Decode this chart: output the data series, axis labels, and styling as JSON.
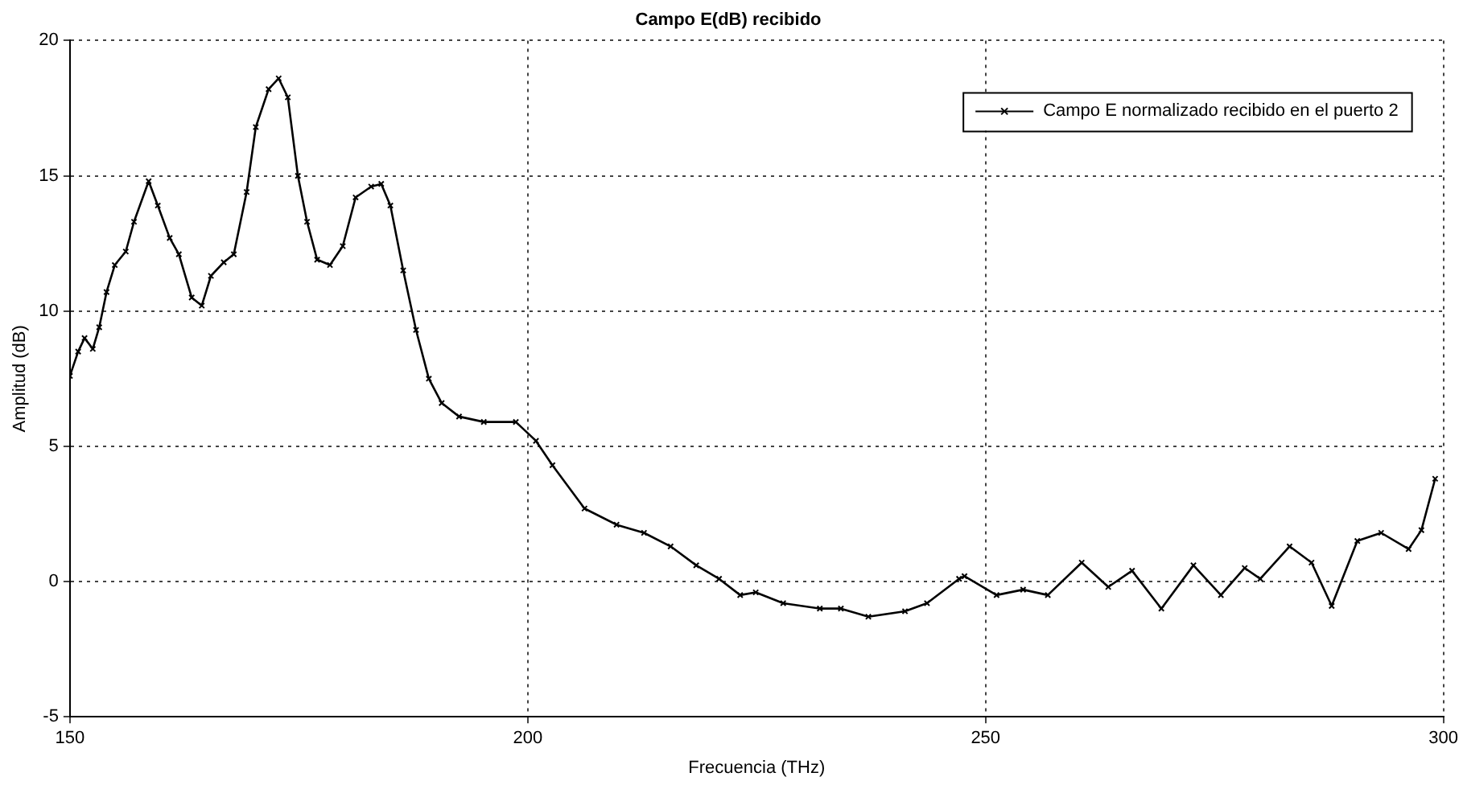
{
  "chart_data": {
    "type": "line",
    "title": "Campo E(dB) recibido",
    "xlabel": "Frecuencia (THz)",
    "ylabel": "Amplitud (dB)",
    "x": [
      150,
      150.9,
      151.6,
      152.5,
      153.2,
      154,
      154.9,
      156.1,
      157,
      158.6,
      159.6,
      160.9,
      161.9,
      163.3,
      164.4,
      165.4,
      166.8,
      167.9,
      169.3,
      170.3,
      171.7,
      172.8,
      173.8,
      174.9,
      175.9,
      177,
      178.4,
      179.8,
      181.2,
      182.9,
      184,
      185,
      186.4,
      187.8,
      189.2,
      190.6,
      192.5,
      195.2,
      198.7,
      200.9,
      202.7,
      206.2,
      209.7,
      212.7,
      215.6,
      218.4,
      220.9,
      223.2,
      224.9,
      227.9,
      231.9,
      234.2,
      237.2,
      241.2,
      243.6,
      247.1,
      247.7,
      251.2,
      254.1,
      256.8,
      260.5,
      263.4,
      266,
      269.2,
      272.7,
      275.7,
      278.3,
      280,
      283.2,
      285.6,
      287.8,
      290.6,
      293.2,
      296.2,
      297.6,
      299.1
    ],
    "series": [
      {
        "name": "Campo E normalizado recibido en el puerto 2",
        "color": "#000000",
        "values": [
          7.6,
          8.5,
          9.0,
          8.6,
          9.4,
          10.7,
          11.7,
          12.2,
          13.3,
          14.8,
          13.9,
          12.7,
          12.1,
          10.5,
          10.2,
          11.3,
          11.8,
          12.1,
          14.4,
          16.8,
          18.2,
          18.6,
          17.9,
          15.0,
          13.3,
          11.9,
          11.7,
          12.4,
          14.2,
          14.6,
          14.7,
          13.9,
          11.5,
          9.3,
          7.5,
          6.6,
          6.1,
          5.9,
          5.9,
          5.2,
          4.3,
          2.7,
          2.1,
          1.8,
          1.3,
          0.6,
          0.1,
          -0.5,
          -0.4,
          -0.8,
          -1.0,
          -1.0,
          -1.3,
          -1.1,
          -0.8,
          0.1,
          0.2,
          -0.5,
          -0.3,
          -0.5,
          0.7,
          -0.2,
          0.4,
          -1.0,
          0.6,
          -0.5,
          0.5,
          0.1,
          1.3,
          0.7,
          -0.9,
          1.5,
          1.8,
          1.2,
          1.9,
          3.8
        ]
      }
    ],
    "xlim": [
      150,
      300
    ],
    "xticks": [
      150,
      200,
      250,
      300
    ],
    "ylim": [
      -5,
      20
    ],
    "yticks": [
      -5,
      0,
      5,
      10,
      15,
      20
    ],
    "grid": true,
    "legend": "top right",
    "marker": "cross",
    "line_style": "solid"
  }
}
